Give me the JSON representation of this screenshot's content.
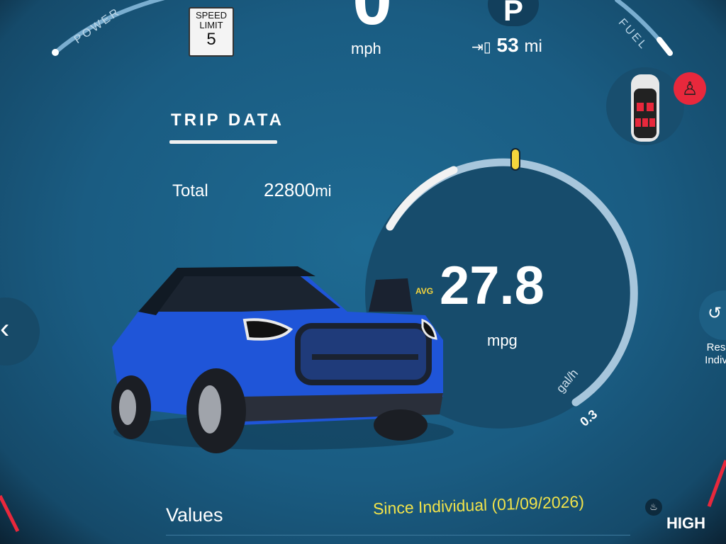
{
  "header": {
    "power_label": "POWER",
    "fuel_label": "FUEL",
    "speed_limit": {
      "label": "SPEED LIMIT",
      "value": "5"
    },
    "speed": {
      "value": "0",
      "unit": "mph"
    },
    "gear": "P",
    "range": {
      "icon": "fuel-pump-icon",
      "value": "53",
      "unit": "mi"
    }
  },
  "status_icons": {
    "seatbelt_warning": "seatbelt-icon",
    "door_status": "car-top-view-icon"
  },
  "trip": {
    "title": "TRIP DATA",
    "total_label": "Total",
    "total_value": "22800",
    "total_unit": "mi"
  },
  "gauge": {
    "avg_label": "AVG",
    "value": "27.8",
    "unit": "mpg",
    "scale_label": "gal/h",
    "scale_value": "0.3",
    "accent": "#f5d53c"
  },
  "side": {
    "back_icon": "chevron-left-icon",
    "reset_icon": "reset-icon",
    "reset_label_1": "Res",
    "reset_label_2": "Indiv"
  },
  "footer": {
    "values_label": "Values",
    "since_label": "Since Individual (01/09/2026)",
    "seat_heat_icon": "seat-heater-icon",
    "seat_heat_level": "HIGH"
  },
  "colors": {
    "background": "#1a5c82",
    "dial": "#174c6c",
    "warning": "#e8283c",
    "highlight": "#f0e24a"
  }
}
